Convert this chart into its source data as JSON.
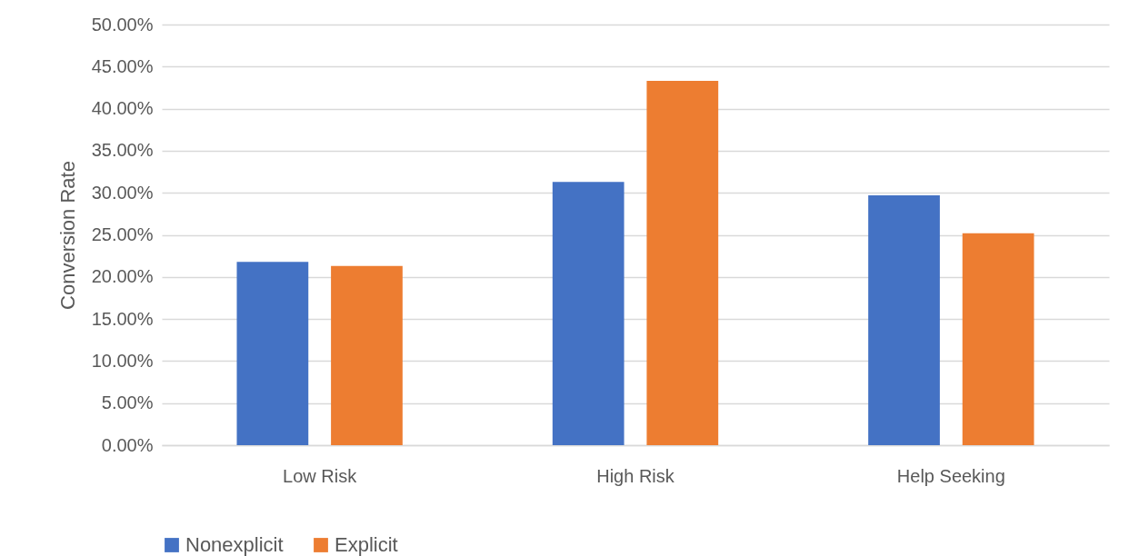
{
  "chart_data": {
    "type": "bar",
    "ylabel": "Conversion Rate",
    "categories": [
      "Low Risk",
      "High Risk",
      "Help Seeking"
    ],
    "series": [
      {
        "name": "Nonexplicit",
        "color": "#4472c4",
        "values": [
          21.8,
          31.3,
          29.7
        ]
      },
      {
        "name": "Explicit",
        "color": "#ed7d31",
        "values": [
          21.3,
          43.3,
          25.2
        ]
      }
    ],
    "ylim": [
      0,
      50
    ],
    "yticks": [
      {
        "value": 0,
        "label": "0.00%"
      },
      {
        "value": 5,
        "label": "5.00%"
      },
      {
        "value": 10,
        "label": "10.00%"
      },
      {
        "value": 15,
        "label": "15.00%"
      },
      {
        "value": 20,
        "label": "20.00%"
      },
      {
        "value": 25,
        "label": "25.00%"
      },
      {
        "value": 30,
        "label": "30.00%"
      },
      {
        "value": 35,
        "label": "35.00%"
      },
      {
        "value": 40,
        "label": "40.00%"
      },
      {
        "value": 45,
        "label": "45.00%"
      },
      {
        "value": 50,
        "label": "50.00%"
      }
    ],
    "grid": "y",
    "legend": "bottom"
  }
}
